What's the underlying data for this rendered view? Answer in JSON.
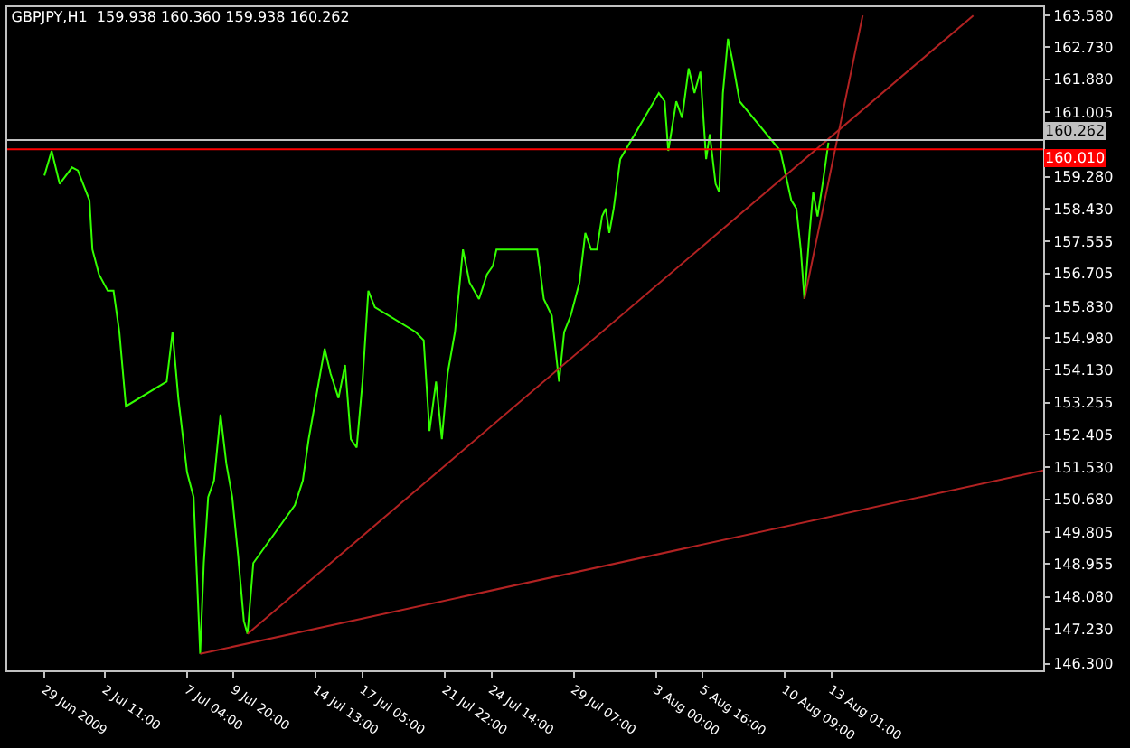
{
  "chart_data": {
    "type": "line",
    "title": "GBPJPY,H1  159.938 160.360 159.938 160.262",
    "xlim": [
      "2009-06-26T21:00",
      "2009-08-25T04:00"
    ],
    "ylim": [
      146.12,
      163.8
    ],
    "xticks": [
      {
        "value": "2009-06-29T00:00",
        "label": "29 Jun 2009"
      },
      {
        "value": "2009-07-02T11:00",
        "label": "2 Jul 11:00"
      },
      {
        "value": "2009-07-07T04:00",
        "label": "7 Jul 04:00"
      },
      {
        "value": "2009-07-09T20:00",
        "label": "9 Jul 20:00"
      },
      {
        "value": "2009-07-14T13:00",
        "label": "14 Jul 13:00"
      },
      {
        "value": "2009-07-17T05:00",
        "label": "17 Jul 05:00"
      },
      {
        "value": "2009-07-21T22:00",
        "label": "21 Jul 22:00"
      },
      {
        "value": "2009-07-24T14:00",
        "label": "24 Jul 14:00"
      },
      {
        "value": "2009-07-29T07:00",
        "label": "29 Jul 07:00"
      },
      {
        "value": "2009-08-03T00:00",
        "label": "3 Aug 00:00"
      },
      {
        "value": "2009-08-05T16:00",
        "label": "5 Aug 16:00"
      },
      {
        "value": "2009-08-10T09:00",
        "label": "10 Aug 09:00"
      },
      {
        "value": "2009-08-13T01:00",
        "label": "13 Aug 01:00"
      }
    ],
    "yticks": [
      {
        "value": 163.58,
        "label": "163.580"
      },
      {
        "value": 162.73,
        "label": "162.730"
      },
      {
        "value": 161.88,
        "label": "161.880"
      },
      {
        "value": 161.005,
        "label": "161.005"
      },
      {
        "value": 159.28,
        "label": "159.280"
      },
      {
        "value": 158.43,
        "label": "158.430"
      },
      {
        "value": 157.555,
        "label": "157.555"
      },
      {
        "value": 156.705,
        "label": "156.705"
      },
      {
        "value": 155.83,
        "label": "155.830"
      },
      {
        "value": 154.98,
        "label": "154.980"
      },
      {
        "value": 154.13,
        "label": "154.130"
      },
      {
        "value": 153.255,
        "label": "153.255"
      },
      {
        "value": 152.405,
        "label": "152.405"
      },
      {
        "value": 151.53,
        "label": "151.530"
      },
      {
        "value": 150.68,
        "label": "150.680"
      },
      {
        "value": 149.805,
        "label": "149.805"
      },
      {
        "value": 148.955,
        "label": "148.955"
      },
      {
        "value": 148.08,
        "label": "148.080"
      },
      {
        "value": 147.23,
        "label": "147.230"
      },
      {
        "value": 146.3,
        "label": "146.300"
      }
    ],
    "series": [
      {
        "color": "#33ff00",
        "x": [
          "2009-06-29T00:00",
          "2009-06-29T10:00",
          "2009-06-29T21:00",
          "2009-06-30T14:00",
          "2009-06-30T22:00",
          "2009-07-01T14:00",
          "2009-07-01T18:00",
          "2009-07-02T03:00",
          "2009-07-02T15:00",
          "2009-07-02T23:00",
          "2009-07-03T07:00",
          "2009-07-03T16:00",
          "2009-07-06T00:00",
          "2009-07-06T08:00",
          "2009-07-06T16:00",
          "2009-07-07T04:00",
          "2009-07-07T13:00",
          "2009-07-07T22:00",
          "2009-07-08T03:00",
          "2009-07-08T09:00",
          "2009-07-08T17:00",
          "2009-07-09T02:00",
          "2009-07-09T10:00",
          "2009-07-09T18:00",
          "2009-07-10T02:00",
          "2009-07-10T10:00",
          "2009-07-10T15:00",
          "2009-07-10T23:00",
          "2009-07-13T08:00",
          "2009-07-13T19:00",
          "2009-07-14T03:00",
          "2009-07-14T15:00",
          "2009-07-15T01:00",
          "2009-07-15T09:00",
          "2009-07-15T20:00",
          "2009-07-16T05:00",
          "2009-07-16T13:00",
          "2009-07-16T21:00",
          "2009-07-17T05:00",
          "2009-07-17T13:00",
          "2009-07-17T22:00",
          "2009-07-20T06:00",
          "2009-07-20T17:00",
          "2009-07-21T01:00",
          "2009-07-21T10:00",
          "2009-07-21T18:00",
          "2009-07-22T02:00",
          "2009-07-22T12:00",
          "2009-07-22T23:00",
          "2009-07-23T08:00",
          "2009-07-23T21:00",
          "2009-07-24T08:00",
          "2009-07-24T16:00",
          "2009-07-24T21:00",
          "2009-07-27T05:00",
          "2009-07-27T14:00",
          "2009-07-28T01:00",
          "2009-07-28T11:00",
          "2009-07-28T18:00",
          "2009-07-29T03:00",
          "2009-07-29T15:00",
          "2009-07-29T23:00",
          "2009-07-30T07:00",
          "2009-07-30T15:00",
          "2009-07-30T22:00",
          "2009-07-31T03:00",
          "2009-07-31T08:00",
          "2009-07-31T14:00",
          "2009-07-31T23:00",
          "2009-08-03T04:00",
          "2009-08-03T12:00",
          "2009-08-03T17:00",
          "2009-08-04T04:00",
          "2009-08-04T12:00",
          "2009-08-04T21:00",
          "2009-08-05T05:00",
          "2009-08-05T13:00",
          "2009-08-05T21:00",
          "2009-08-06T02:00",
          "2009-08-06T10:00",
          "2009-08-06T15:00",
          "2009-08-06T20:00",
          "2009-08-07T03:00",
          "2009-08-07T09:00",
          "2009-08-07T19:00",
          "2009-08-10T03:00",
          "2009-08-10T08:00",
          "2009-08-10T18:00",
          "2009-08-11T01:00",
          "2009-08-11T07:00",
          "2009-08-11T12:00",
          "2009-08-11T19:00",
          "2009-08-12T00:00",
          "2009-08-12T06:00",
          "2009-08-12T13:00",
          "2009-08-12T21:00"
        ],
        "values": [
          159.31,
          159.97,
          159.09,
          159.53,
          159.45,
          158.65,
          157.34,
          156.68,
          156.24,
          156.24,
          155.14,
          153.16,
          153.82,
          155.14,
          153.38,
          151.4,
          150.74,
          146.56,
          148.98,
          150.74,
          151.18,
          152.94,
          151.62,
          150.74,
          149.2,
          147.44,
          147.09,
          148.98,
          150.52,
          151.18,
          152.28,
          153.6,
          154.7,
          154.04,
          153.38,
          154.26,
          152.28,
          152.06,
          153.82,
          156.24,
          155.8,
          155.14,
          154.92,
          152.5,
          153.82,
          152.28,
          154.04,
          155.14,
          157.34,
          156.46,
          156.02,
          156.68,
          156.9,
          157.34,
          157.34,
          156.02,
          155.58,
          153.82,
          155.14,
          155.58,
          156.46,
          157.78,
          157.34,
          157.34,
          158.22,
          158.43,
          157.78,
          158.43,
          159.75,
          161.51,
          161.29,
          159.97,
          161.29,
          160.85,
          162.17,
          161.51,
          162.08,
          159.75,
          160.41,
          159.09,
          158.87,
          161.51,
          162.96,
          162.39,
          161.29,
          159.97,
          159.53,
          158.65,
          158.43,
          157.34,
          156.02,
          157.78,
          158.87,
          158.22,
          159.09,
          160.19
        ]
      },
      {
        "color": "#b22222",
        "x": [
          "2009-07-07T22:00",
          "2009-08-25T04:00"
        ],
        "values": [
          146.56,
          151.45
        ]
      },
      {
        "color": "#b22222",
        "x": [
          "2009-07-10T15:00",
          "2009-08-21T04:00"
        ],
        "values": [
          147.09,
          163.58
        ]
      },
      {
        "color": "#b22222",
        "x": [
          "2009-08-11T12:00",
          "2009-08-14T20:00"
        ],
        "values": [
          156.02,
          163.58
        ]
      }
    ],
    "ref_lines": [
      {
        "axis": "y",
        "value": 160.262,
        "label": "160.262",
        "color": "#c0c0c0"
      },
      {
        "axis": "y",
        "value": 160.01,
        "label": "160.010",
        "color": "#ff0000"
      }
    ],
    "grid": false,
    "marker": "none",
    "line_style": "solid"
  }
}
